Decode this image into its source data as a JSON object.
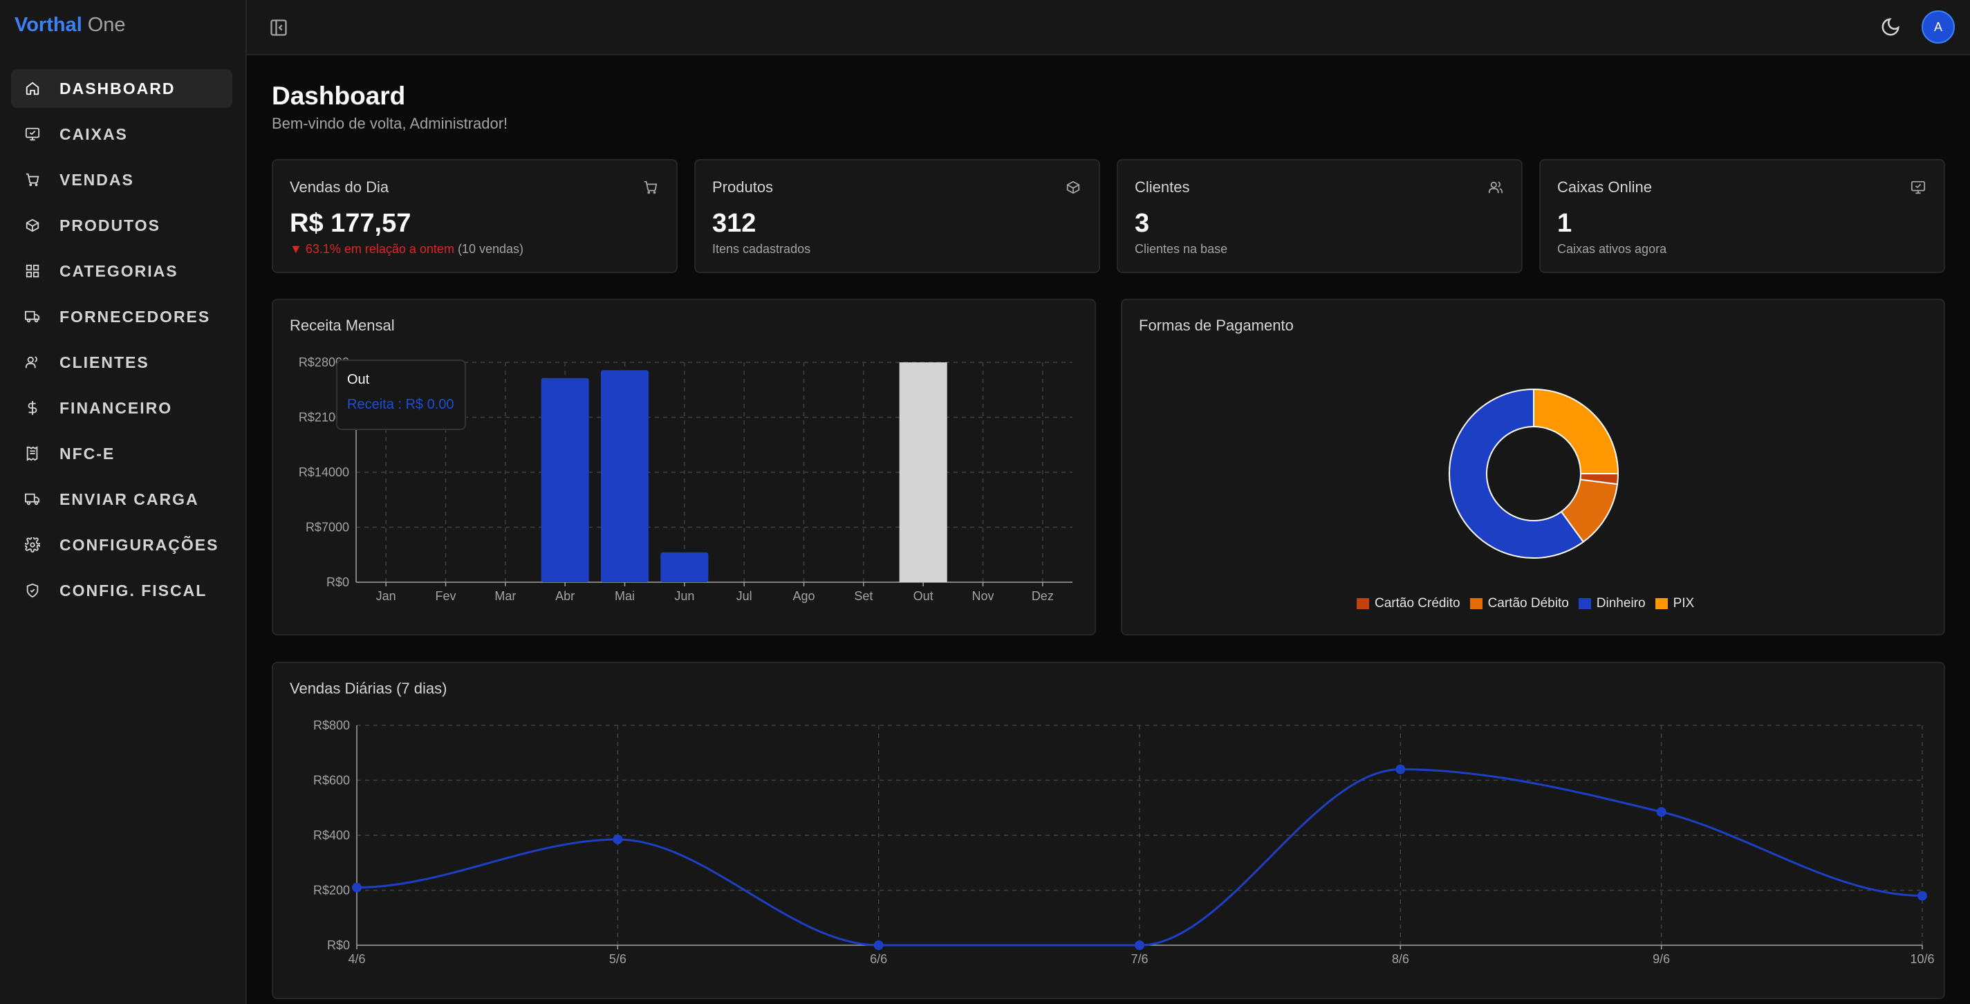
{
  "brand": {
    "name": "Vorthal",
    "suffix": "One"
  },
  "sidebar": {
    "items": [
      {
        "label": "DASHBOARD",
        "icon": "home-icon",
        "active": true
      },
      {
        "label": "CAIXAS",
        "icon": "monitor-icon"
      },
      {
        "label": "VENDAS",
        "icon": "cart-icon"
      },
      {
        "label": "PRODUTOS",
        "icon": "box-icon"
      },
      {
        "label": "CATEGORIAS",
        "icon": "grid-icon"
      },
      {
        "label": "FORNECEDORES",
        "icon": "truck-icon"
      },
      {
        "label": "CLIENTES",
        "icon": "users-icon"
      },
      {
        "label": "FINANCEIRO",
        "icon": "dollar-icon"
      },
      {
        "label": "NFC-E",
        "icon": "receipt-icon"
      },
      {
        "label": "ENVIAR CARGA",
        "icon": "truck-icon"
      },
      {
        "label": "CONFIGURAÇÕES",
        "icon": "gear-icon"
      },
      {
        "label": "CONFIG. FISCAL",
        "icon": "shield-icon"
      }
    ]
  },
  "header": {
    "avatar_initial": "A"
  },
  "page": {
    "title": "Dashboard",
    "subtitle": "Bem-vindo de volta, Administrador!"
  },
  "stats": [
    {
      "label": "Vendas do Dia",
      "value": "R$ 177,57",
      "change": "▼ 63.1% em relação a ontem",
      "sub": " (10 vendas)",
      "icon": "cart-icon"
    },
    {
      "label": "Produtos",
      "value": "312",
      "sub": "Itens cadastrados",
      "icon": "box-icon"
    },
    {
      "label": "Clientes",
      "value": "3",
      "sub": "Clientes na base",
      "icon": "users-icon"
    },
    {
      "label": "Caixas Online",
      "value": "1",
      "sub": "Caixas ativos agora",
      "icon": "monitor-icon"
    }
  ],
  "colors": {
    "primary": "#1d3fc4",
    "highlight": "#d4d4d4",
    "cartao_credito": "#c2410c",
    "cartao_debito": "#e06c0a",
    "dinheiro": "#1d3fc4",
    "pix": "#ff9800"
  },
  "chart_data": [
    {
      "type": "bar",
      "title": "Receita Mensal",
      "categories": [
        "Jan",
        "Fev",
        "Mar",
        "Abr",
        "Mai",
        "Jun",
        "Jul",
        "Ago",
        "Set",
        "Out",
        "Nov",
        "Dez"
      ],
      "values": [
        0,
        0,
        0,
        26000,
        27000,
        3800,
        0,
        0,
        0,
        0,
        0,
        0
      ],
      "highlighted": "Out",
      "ylim": [
        0,
        28000
      ],
      "yticks": [
        "R$0",
        "R$7000",
        "R$14000",
        "R$21000",
        "R$28000"
      ],
      "ytick_values": [
        0,
        7000,
        14000,
        21000,
        28000
      ],
      "tooltip": {
        "title": "Out",
        "text": "Receita : R$ 0.00"
      }
    },
    {
      "type": "pie",
      "title": "Formas de Pagamento",
      "labels": [
        "Cartão Crédito",
        "Cartão Débito",
        "Dinheiro",
        "PIX"
      ],
      "values": [
        2,
        13,
        60,
        25
      ]
    },
    {
      "type": "line",
      "title": "Vendas Diárias (7 dias)",
      "x": [
        "4/6",
        "5/6",
        "6/6",
        "7/6",
        "8/6",
        "9/6",
        "10/6"
      ],
      "values": [
        210,
        385,
        0,
        0,
        640,
        485,
        180
      ],
      "ylim": [
        0,
        800
      ],
      "yticks": [
        "R$0",
        "R$200",
        "R$400",
        "R$600",
        "R$800"
      ],
      "ytick_values": [
        0,
        200,
        400,
        600,
        800
      ]
    }
  ]
}
